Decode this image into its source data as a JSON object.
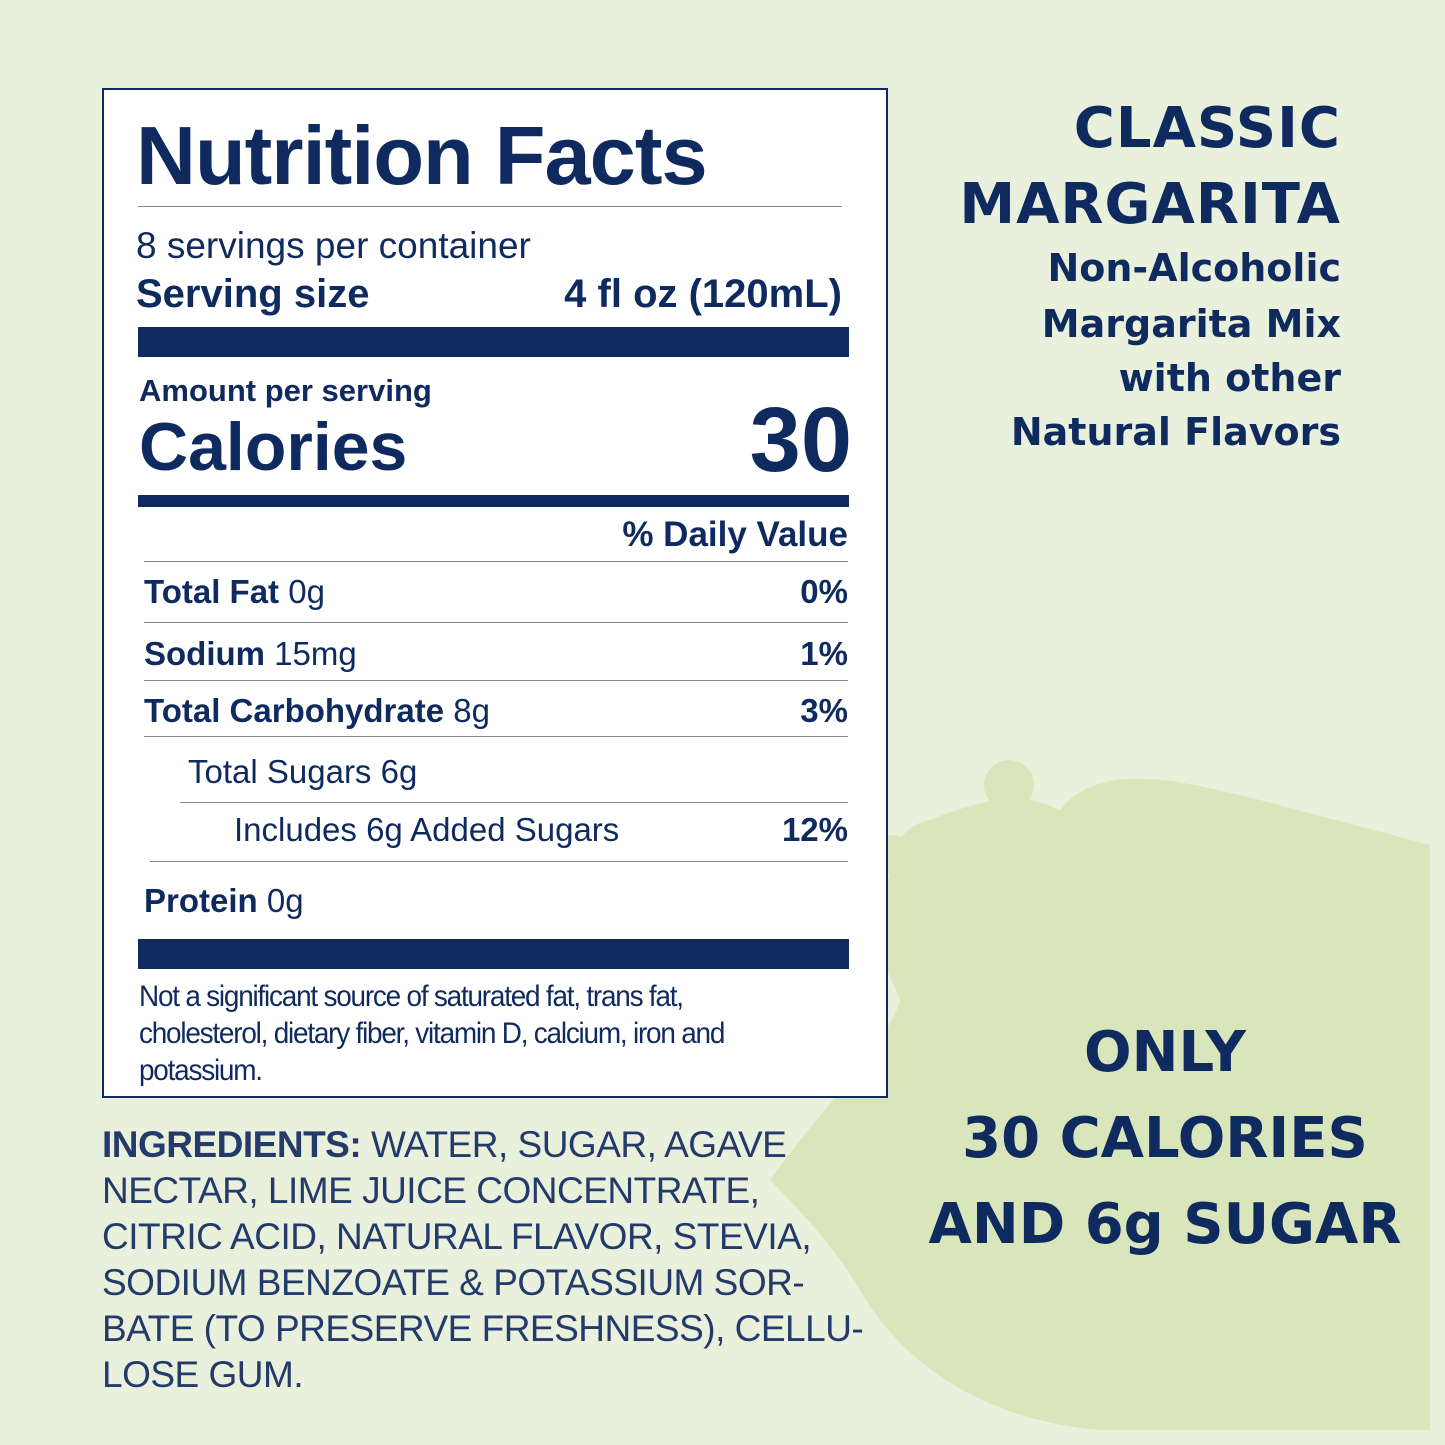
{
  "colors": {
    "navy": "#0f2a5e",
    "background": "#e9f1dc",
    "blob": "#d9e6bc"
  },
  "label": {
    "title": "Nutrition Facts",
    "servings": "8 servings per container",
    "serving_size_label": "Serving size",
    "serving_size_value": "4 fl oz (120mL)",
    "amount_per_serving": "Amount per serving",
    "calories_label": "Calories",
    "calories_value": "30",
    "daily_value_header": "% Daily Value",
    "rows": [
      {
        "name": "Total Fat",
        "amount": "0g",
        "dv": "0%"
      },
      {
        "name": "Sodium",
        "amount": "15mg",
        "dv": "1%"
      },
      {
        "name": "Total Carbohydrate",
        "amount": "8g",
        "dv": "3%"
      },
      {
        "name": "",
        "amount": "Total Sugars 6g",
        "dv": ""
      },
      {
        "name": "",
        "amount": "Includes 6g Added Sugars",
        "dv": "12%"
      },
      {
        "name": "Protein",
        "amount": "0g",
        "dv": ""
      }
    ],
    "footnote": "Not a significant source of saturated fat, trans fat, cholesterol, dietary fiber, vitamin D, calcium, iron and potassium."
  },
  "ingredients": {
    "label": "INGREDIENTS:",
    "lines": [
      " WATER, SUGAR, AGAVE",
      "NECTAR, LIME JUICE CONCENTRATE,",
      "CITRIC ACID, NATURAL FLAVOR, STEVIA,",
      "SODIUM BENZOATE & POTASSIUM SOR-",
      "BATE (TO PRESERVE FRESHNESS), CELLU-",
      "LOSE GUM."
    ]
  },
  "product": {
    "line1": "CLASSIC",
    "line2": "MARGARITA",
    "sub1": "Non-Alcoholic",
    "sub2": "Margarita Mix",
    "sub3": "with other",
    "sub4": "Natural Flavors"
  },
  "promo": {
    "line1": "ONLY",
    "line2": "30 CALORIES",
    "line3": "AND 6g SUGAR"
  }
}
